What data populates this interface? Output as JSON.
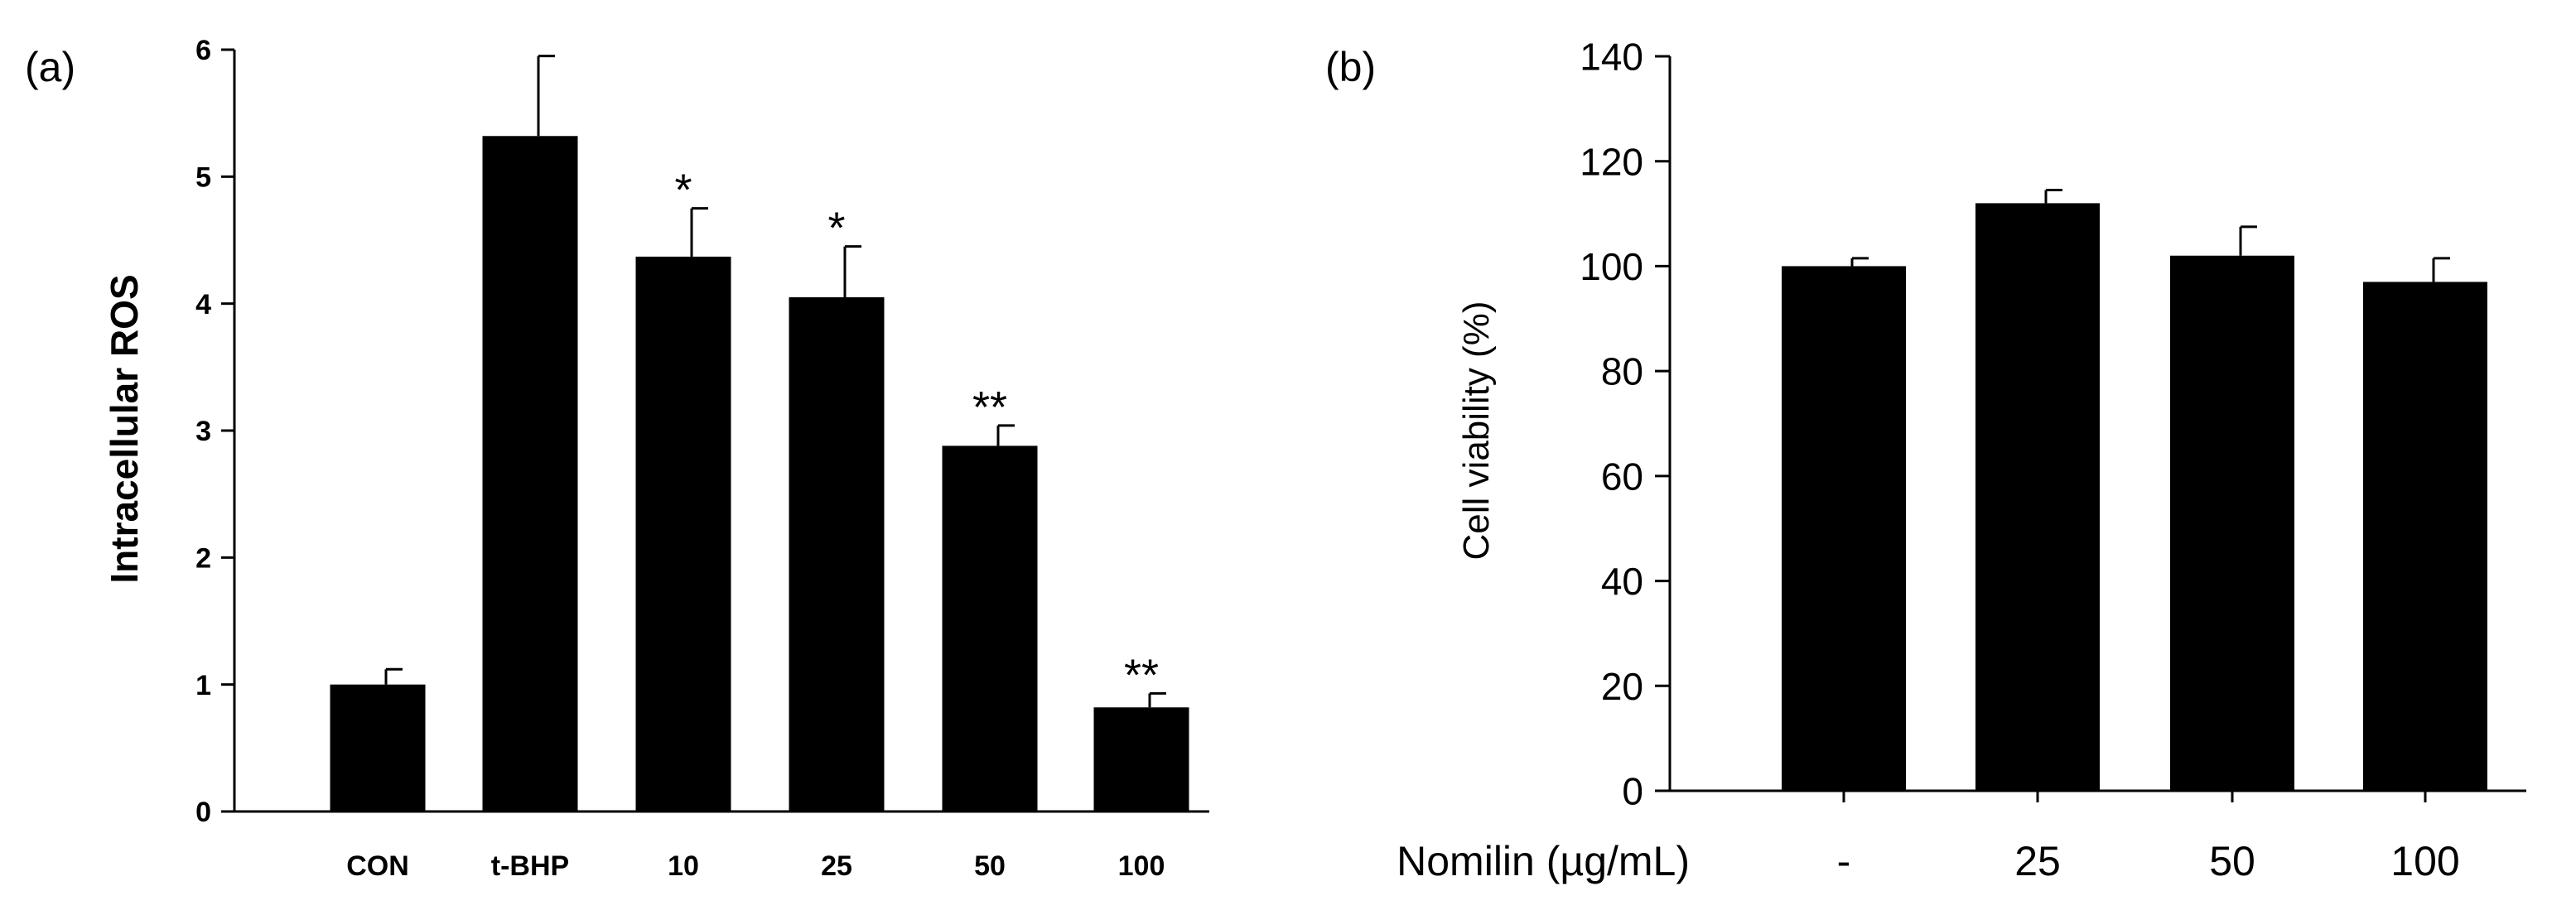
{
  "chart_data": [
    {
      "type": "bar",
      "panel_label": "(a)",
      "title": "",
      "xlabel": "",
      "ylabel": "Intracellular ROS",
      "ylim": [
        0,
        6
      ],
      "yticks": [
        "0",
        "1",
        "2",
        "3",
        "4",
        "5",
        "6"
      ],
      "categories": [
        "CON",
        "t-BHP",
        "10",
        "25",
        "50",
        "100"
      ],
      "values": [
        1.0,
        5.32,
        4.37,
        4.05,
        2.88,
        0.82
      ],
      "errors": [
        0.12,
        0.63,
        0.38,
        0.4,
        0.16,
        0.11
      ],
      "annotations": [
        "",
        "",
        "*",
        "*",
        "**",
        "**"
      ],
      "bar_color": "#000000",
      "grid": false
    },
    {
      "type": "bar",
      "panel_label": "(b)",
      "title": "",
      "xlabel": "Nomilin (µg/mL)",
      "ylabel": "Cell viability (%)",
      "ylim": [
        0,
        140
      ],
      "yticks": [
        "0",
        "20",
        "40",
        "60",
        "80",
        "100",
        "120",
        "140"
      ],
      "categories": [
        "-",
        "25",
        "50",
        "100"
      ],
      "values": [
        100,
        112,
        102,
        97
      ],
      "errors": [
        1.5,
        2.5,
        5.5,
        4.5
      ],
      "bar_color": "#000000",
      "grid": false
    }
  ]
}
